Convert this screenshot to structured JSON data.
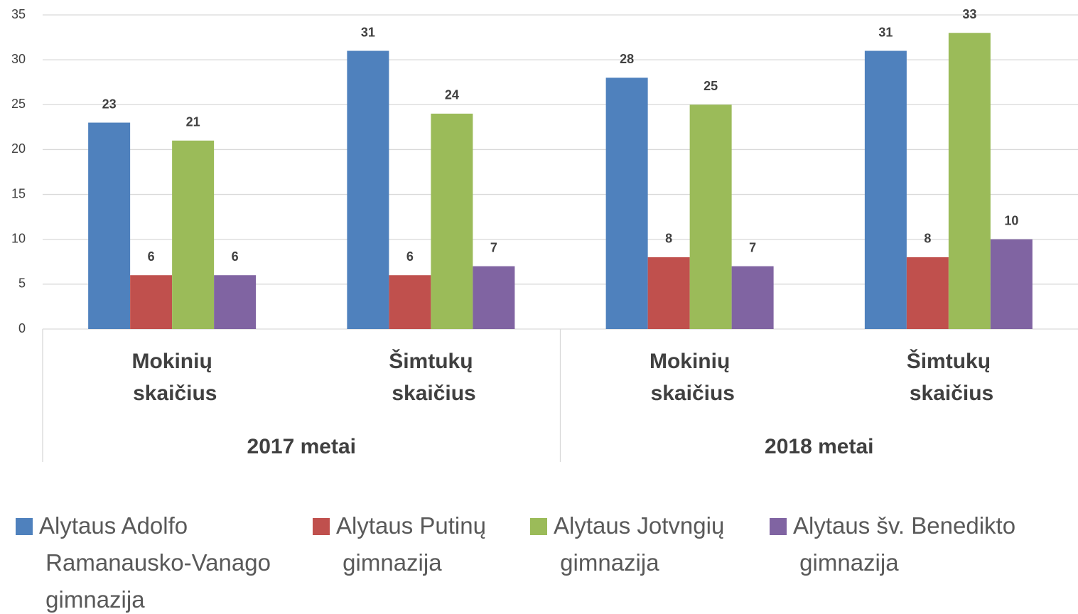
{
  "chart_data": {
    "type": "bar",
    "categories": [
      "Mokinių skaičius",
      "Šimtukų skaičius",
      "Mokinių skaičius",
      "Šimtukų skaičius"
    ],
    "groups": [
      {
        "label": "2017 metai",
        "size": 2
      },
      {
        "label": "2018 metai",
        "size": 2
      }
    ],
    "series": [
      {
        "name": "Alytaus Adolfo Ramanausko-Vanago gimnazija",
        "color": "#4f81bd",
        "values": [
          23,
          31,
          28,
          31
        ]
      },
      {
        "name": "Alytaus Putinų gimnazija",
        "color": "#c0504d",
        "values": [
          6,
          6,
          8,
          8
        ]
      },
      {
        "name": "Alytaus Jotvngių gimnazija",
        "color": "#9bbb59",
        "values": [
          21,
          24,
          25,
          33
        ]
      },
      {
        "name": "Alytaus šv. Benedikto gimnazija",
        "color": "#8064a2",
        "values": [
          6,
          7,
          7,
          10
        ]
      }
    ],
    "ylim": [
      0,
      35
    ],
    "yticks": [
      0,
      5,
      10,
      15,
      20,
      25,
      30,
      35
    ],
    "grid": true,
    "legend": "bottom"
  }
}
